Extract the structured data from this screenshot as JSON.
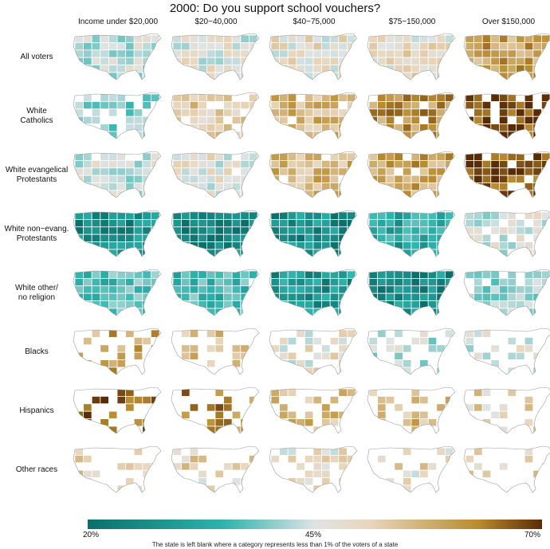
{
  "title": "2000: Do you support school vouchers?",
  "columns": [
    "Income under $20,000",
    "$20−40,000",
    "$40−75,000",
    "$75−150,000",
    "Over $150,000"
  ],
  "rows": [
    "All voters",
    "White\nCatholics",
    "White evangelical\nProtestants",
    "White non−evang.\nProtestants",
    "White other/\nno religion",
    "Blacks",
    "Hispanics",
    "Other races"
  ],
  "legend": {
    "min_label": "20%",
    "mid_label": "45%",
    "max_label": "70%"
  },
  "note": "The state is left blank where a category represents less than 1% of the voters of a state",
  "colors": {
    "teal_dark": "#0b6f6b",
    "teal": "#2fb3ad",
    "neutral": "#dfe3e4",
    "tan": "#e9d6bd",
    "gold": "#b88b2f",
    "brown_dark": "#5a2c06",
    "blank": "#ffffff"
  },
  "map_levels": [
    [
      0.42,
      0.45,
      0.47,
      0.48,
      0.58
    ],
    [
      0.38,
      0.52,
      0.55,
      0.6,
      0.68
    ],
    [
      0.43,
      0.46,
      0.55,
      0.58,
      0.67
    ],
    [
      0.25,
      0.23,
      0.25,
      0.3,
      0.44
    ],
    [
      0.35,
      0.34,
      0.27,
      0.25,
      0.4
    ],
    [
      0.58,
      0.55,
      0.47,
      0.42,
      0.45
    ],
    [
      0.66,
      0.62,
      0.54,
      0.54,
      0.5
    ],
    [
      0.5,
      0.5,
      0.48,
      0.49,
      0.49
    ]
  ],
  "blank_share": [
    [
      0.0,
      0.0,
      0.0,
      0.0,
      0.0
    ],
    [
      0.35,
      0.2,
      0.1,
      0.05,
      0.15
    ],
    [
      0.05,
      0.05,
      0.05,
      0.05,
      0.1
    ],
    [
      0.0,
      0.0,
      0.0,
      0.0,
      0.1
    ],
    [
      0.05,
      0.05,
      0.0,
      0.0,
      0.15
    ],
    [
      0.55,
      0.55,
      0.5,
      0.55,
      0.7
    ],
    [
      0.55,
      0.55,
      0.55,
      0.6,
      0.75
    ],
    [
      0.65,
      0.65,
      0.6,
      0.65,
      0.75
    ]
  ]
}
